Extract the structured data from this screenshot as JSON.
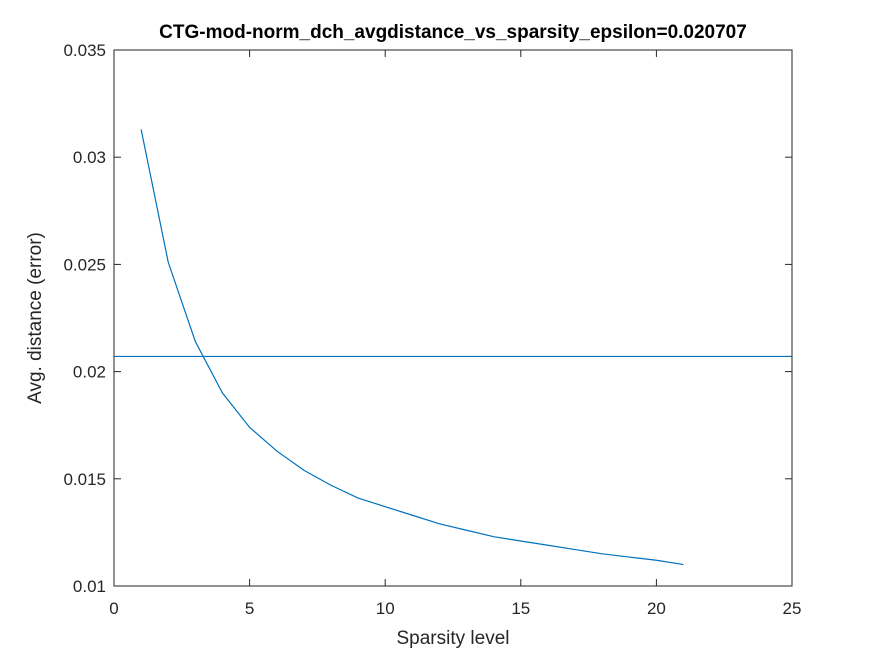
{
  "chart_data": {
    "type": "line",
    "title": "CTG-mod-norm_dch_avgdistance_vs_sparsity_epsilon=0.020707",
    "xlabel": "Sparsity level",
    "ylabel": "Avg. distance (error)",
    "xlim": [
      0,
      25
    ],
    "ylim": [
      0.01,
      0.035
    ],
    "xticks": [
      0,
      5,
      10,
      15,
      20,
      25
    ],
    "yticks": [
      0.01,
      0.015,
      0.02,
      0.025,
      0.03,
      0.035
    ],
    "xtick_labels": [
      "0",
      "5",
      "10",
      "15",
      "20",
      "25"
    ],
    "ytick_labels": [
      "0.01",
      "0.015",
      "0.02",
      "0.025",
      "0.03",
      "0.035"
    ],
    "grid": false,
    "line_color": "#0072BD",
    "series": [
      {
        "x": [
          1,
          2,
          3,
          4,
          5,
          6,
          7,
          8,
          9,
          10,
          11,
          12,
          13,
          14,
          15,
          16,
          17,
          18,
          19,
          20,
          21
        ],
        "values": [
          0.0313,
          0.0251,
          0.0214,
          0.019,
          0.0174,
          0.0163,
          0.0154,
          0.0147,
          0.0141,
          0.0137,
          0.0133,
          0.0129,
          0.0126,
          0.0123,
          0.0121,
          0.0119,
          0.0117,
          0.0115,
          0.01135,
          0.0112,
          0.011
        ]
      }
    ],
    "hline": {
      "y": 0.020707
    }
  }
}
